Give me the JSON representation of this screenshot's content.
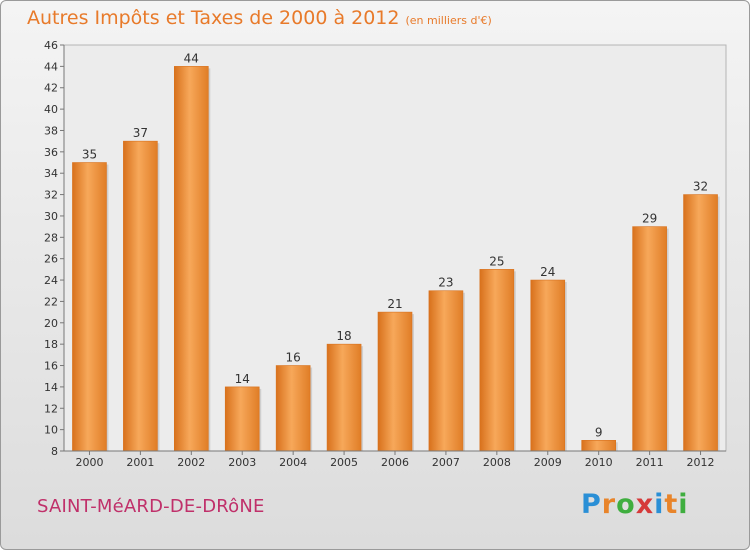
{
  "header": {
    "title": "Autres Impôts et Taxes de 2000 à 2012",
    "unit": "(en milliers d'€)"
  },
  "footer": {
    "commune": "SAINT-MéARD-DE-DRôNE"
  },
  "logo": {
    "letters": [
      "P",
      "r",
      "o",
      "x",
      "i",
      "t",
      "i"
    ],
    "colors": [
      "#2a8fd6",
      "#e8842a",
      "#3fae3f",
      "#d63a3a",
      "#2a8fd6",
      "#e8842a",
      "#3fae3f"
    ]
  },
  "chart_data": {
    "type": "bar",
    "title": "Autres Impôts et Taxes de 2000 à 2012",
    "categories": [
      "2000",
      "2001",
      "2002",
      "2003",
      "2004",
      "2005",
      "2006",
      "2007",
      "2008",
      "2009",
      "2010",
      "2011",
      "2012"
    ],
    "values": [
      35,
      37,
      44,
      14,
      16,
      18,
      21,
      23,
      25,
      24,
      9,
      29,
      32
    ],
    "xlabel": "",
    "ylabel": "",
    "ylim": [
      8,
      46
    ],
    "ytick_step": 2,
    "grid": false,
    "bar_color": "#f08a2c",
    "bar_color_light": "#f7a85a",
    "bar_color_dark": "#d8711c"
  }
}
